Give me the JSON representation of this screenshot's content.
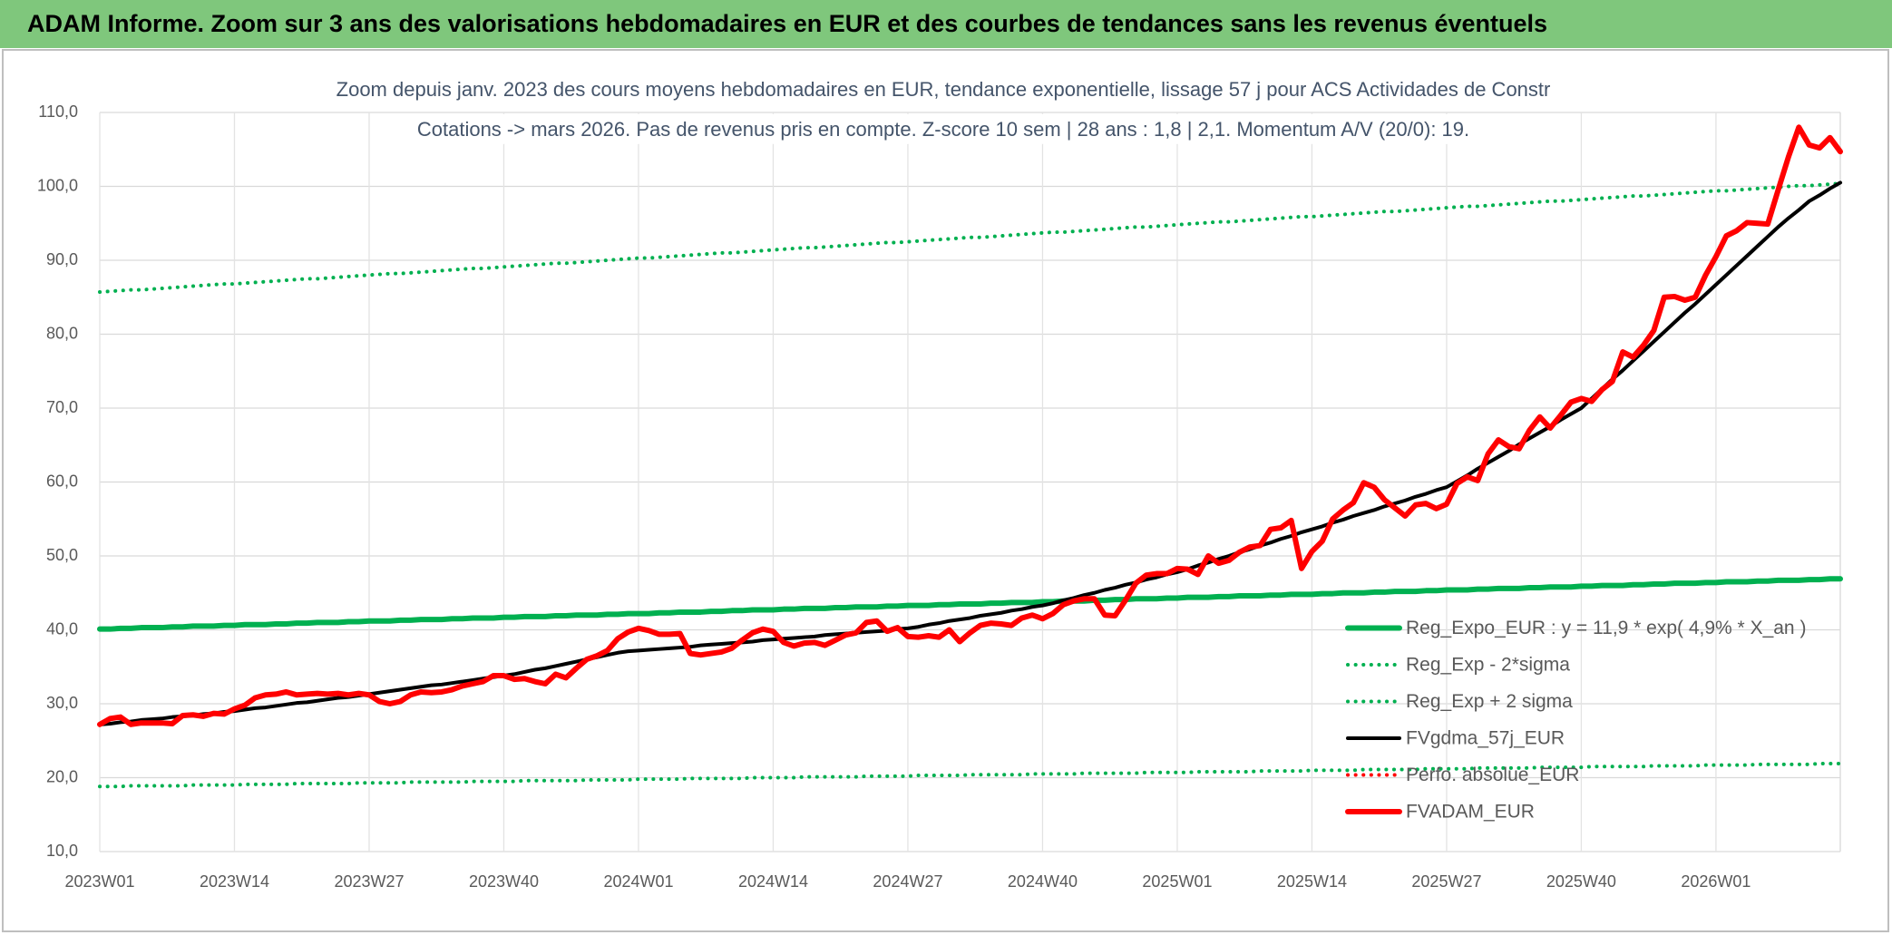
{
  "chart_data": {
    "type": "line",
    "title": "ADAM Informe. Zoom sur 3 ans des valorisations hebdomadaires en EUR et des courbes de tendances sans les revenus éventuels",
    "subtitle": [
      "Zoom depuis janv. 2023 des cours moyens hebdomadaires en EUR, tendance exponentielle, lissage 57 j pour ACS Actividades de Constr",
      "Cotations -> mars 2026. Pas de revenus pris en compte. Z-score 10 sem | 28 ans : 1,8 | 2,1. Momentum A/V (20/0): 19."
    ],
    "categories": [
      "2023W01",
      null,
      null,
      null,
      null,
      null,
      null,
      null,
      null,
      null,
      null,
      null,
      null,
      "2023W14",
      null,
      null,
      null,
      null,
      null,
      null,
      null,
      null,
      null,
      null,
      null,
      null,
      "2023W27",
      null,
      null,
      null,
      null,
      null,
      null,
      null,
      null,
      null,
      null,
      null,
      null,
      "2023W40",
      null,
      null,
      null,
      null,
      null,
      null,
      null,
      null,
      null,
      null,
      null,
      null,
      "2024W01",
      null,
      null,
      null,
      null,
      null,
      null,
      null,
      null,
      null,
      null,
      null,
      null,
      "2024W14",
      null,
      null,
      null,
      null,
      null,
      null,
      null,
      null,
      null,
      null,
      null,
      null,
      "2024W27",
      null,
      null,
      null,
      null,
      null,
      null,
      null,
      null,
      null,
      null,
      null,
      null,
      "2024W40",
      null,
      null,
      null,
      null,
      null,
      null,
      null,
      null,
      null,
      null,
      null,
      null,
      "2025W01",
      null,
      null,
      null,
      null,
      null,
      null,
      null,
      null,
      null,
      null,
      null,
      null,
      "2025W14",
      null,
      null,
      null,
      null,
      null,
      null,
      null,
      null,
      null,
      null,
      null,
      null,
      "2025W27",
      null,
      null,
      null,
      null,
      null,
      null,
      null,
      null,
      null,
      null,
      null,
      null,
      "2025W40",
      null,
      null,
      null,
      null,
      null,
      null,
      null,
      null,
      null,
      null,
      null,
      null,
      "2026W01",
      null,
      null,
      null,
      null,
      null,
      null,
      null,
      null,
      null,
      null,
      null,
      null
    ],
    "ylim": [
      10,
      110
    ],
    "yticks": [
      {
        "value": 10,
        "label": "10,0"
      },
      {
        "value": 20,
        "label": "20,0"
      },
      {
        "value": 30,
        "label": "30,0"
      },
      {
        "value": 40,
        "label": "40,0"
      },
      {
        "value": 50,
        "label": "50,0"
      },
      {
        "value": 60,
        "label": "60,0"
      },
      {
        "value": 70,
        "label": "70,0"
      },
      {
        "value": 80,
        "label": "80,0"
      },
      {
        "value": 90,
        "label": "90,0"
      },
      {
        "value": 100,
        "label": "100,0"
      },
      {
        "value": 110,
        "label": "110,0"
      }
    ],
    "grid": true,
    "legend": "right",
    "series": [
      {
        "name": "Reg_Expo_EUR : y = 11,9 * exp( 4,9% * X_an )",
        "color": "#00b050",
        "line_style": "thick",
        "values": [
          40.1,
          40.1,
          40.2,
          40.2,
          40.3,
          40.3,
          40.3,
          40.4,
          40.4,
          40.5,
          40.5,
          40.5,
          40.6,
          40.6,
          40.7,
          40.7,
          40.7,
          40.8,
          40.8,
          40.9,
          40.9,
          41.0,
          41.0,
          41.0,
          41.1,
          41.1,
          41.2,
          41.2,
          41.2,
          41.3,
          41.3,
          41.4,
          41.4,
          41.4,
          41.5,
          41.5,
          41.6,
          41.6,
          41.6,
          41.7,
          41.7,
          41.8,
          41.8,
          41.8,
          41.9,
          41.9,
          42.0,
          42.0,
          42.0,
          42.1,
          42.1,
          42.2,
          42.2,
          42.2,
          42.3,
          42.3,
          42.4,
          42.4,
          42.4,
          42.5,
          42.5,
          42.6,
          42.6,
          42.7,
          42.7,
          42.7,
          42.8,
          42.8,
          42.9,
          42.9,
          42.9,
          43.0,
          43.0,
          43.1,
          43.1,
          43.1,
          43.2,
          43.2,
          43.3,
          43.3,
          43.3,
          43.4,
          43.4,
          43.5,
          43.5,
          43.5,
          43.6,
          43.6,
          43.7,
          43.7,
          43.7,
          43.8,
          43.8,
          43.9,
          43.9,
          43.9,
          44.0,
          44.0,
          44.1,
          44.1,
          44.2,
          44.2,
          44.2,
          44.3,
          44.3,
          44.4,
          44.4,
          44.4,
          44.5,
          44.5,
          44.6,
          44.6,
          44.6,
          44.7,
          44.7,
          44.8,
          44.8,
          44.8,
          44.9,
          44.9,
          45.0,
          45.0,
          45.0,
          45.1,
          45.1,
          45.2,
          45.2,
          45.2,
          45.3,
          45.3,
          45.4,
          45.4,
          45.4,
          45.5,
          45.5,
          45.6,
          45.6,
          45.6,
          45.7,
          45.7,
          45.8,
          45.8,
          45.8,
          45.9,
          45.9,
          46.0,
          46.0,
          46.0,
          46.1,
          46.1,
          46.2,
          46.2,
          46.3,
          46.3,
          46.3,
          46.4,
          46.4,
          46.5,
          46.5,
          46.5,
          46.6,
          46.6,
          46.7,
          46.7,
          46.7,
          46.8,
          46.8,
          46.9,
          46.9
        ]
      },
      {
        "name": "Reg_Exp - 2*sigma",
        "color": "#00b050",
        "line_style": "dotted",
        "values": [
          18.8,
          18.8,
          18.8,
          18.9,
          18.9,
          18.9,
          18.9,
          18.9,
          18.9,
          19.0,
          19.0,
          19.0,
          19.0,
          19.0,
          19.1,
          19.1,
          19.1,
          19.1,
          19.1,
          19.2,
          19.2,
          19.2,
          19.2,
          19.2,
          19.2,
          19.3,
          19.3,
          19.3,
          19.3,
          19.3,
          19.4,
          19.4,
          19.4,
          19.4,
          19.4,
          19.4,
          19.5,
          19.5,
          19.5,
          19.5,
          19.5,
          19.6,
          19.6,
          19.6,
          19.6,
          19.6,
          19.6,
          19.7,
          19.7,
          19.7,
          19.7,
          19.7,
          19.8,
          19.8,
          19.8,
          19.8,
          19.8,
          19.9,
          19.9,
          19.9,
          19.9,
          19.9,
          19.9,
          20.0,
          20.0,
          20.0,
          20.0,
          20.0,
          20.1,
          20.1,
          20.1,
          20.1,
          20.1,
          20.1,
          20.2,
          20.2,
          20.2,
          20.2,
          20.2,
          20.3,
          20.3,
          20.3,
          20.3,
          20.3,
          20.4,
          20.4,
          20.4,
          20.4,
          20.4,
          20.4,
          20.5,
          20.5,
          20.5,
          20.5,
          20.5,
          20.6,
          20.6,
          20.6,
          20.6,
          20.6,
          20.6,
          20.7,
          20.7,
          20.7,
          20.7,
          20.7,
          20.8,
          20.8,
          20.8,
          20.8,
          20.8,
          20.8,
          20.9,
          20.9,
          20.9,
          20.9,
          20.9,
          21.0,
          21.0,
          21.0,
          21.0,
          21.0,
          21.1,
          21.1,
          21.1,
          21.1,
          21.1,
          21.1,
          21.2,
          21.2,
          21.2,
          21.2,
          21.2,
          21.3,
          21.3,
          21.3,
          21.3,
          21.3,
          21.3,
          21.4,
          21.4,
          21.4,
          21.4,
          21.4,
          21.5,
          21.5,
          21.5,
          21.5,
          21.5,
          21.5,
          21.6,
          21.6,
          21.6,
          21.6,
          21.6,
          21.7,
          21.7,
          21.7,
          21.7,
          21.7,
          21.8,
          21.8,
          21.8,
          21.8,
          21.8,
          21.8,
          21.9,
          21.9,
          21.9
        ]
      },
      {
        "name": "Reg_Exp + 2 sigma",
        "color": "#00b050",
        "line_style": "dotted",
        "values": [
          85.7,
          85.8,
          85.9,
          86.0,
          86.0,
          86.1,
          86.2,
          86.3,
          86.4,
          86.5,
          86.6,
          86.7,
          86.8,
          86.8,
          86.9,
          87.0,
          87.1,
          87.2,
          87.3,
          87.4,
          87.5,
          87.5,
          87.6,
          87.7,
          87.8,
          87.9,
          88.0,
          88.1,
          88.2,
          88.2,
          88.3,
          88.4,
          88.5,
          88.6,
          88.7,
          88.8,
          88.9,
          88.9,
          89.0,
          89.1,
          89.2,
          89.3,
          89.4,
          89.5,
          89.6,
          89.6,
          89.7,
          89.8,
          89.9,
          90.0,
          90.1,
          90.2,
          90.3,
          90.3,
          90.4,
          90.5,
          90.6,
          90.7,
          90.8,
          90.9,
          91.0,
          91.0,
          91.1,
          91.2,
          91.3,
          91.4,
          91.5,
          91.6,
          91.7,
          91.7,
          91.8,
          91.9,
          92.0,
          92.1,
          92.2,
          92.3,
          92.4,
          92.4,
          92.5,
          92.6,
          92.7,
          92.8,
          92.9,
          93.0,
          93.1,
          93.1,
          93.2,
          93.3,
          93.4,
          93.5,
          93.6,
          93.7,
          93.8,
          93.8,
          93.9,
          94.0,
          94.1,
          94.2,
          94.3,
          94.4,
          94.5,
          94.5,
          94.6,
          94.7,
          94.8,
          94.9,
          95.0,
          95.1,
          95.2,
          95.2,
          95.3,
          95.4,
          95.5,
          95.6,
          95.7,
          95.8,
          95.9,
          95.9,
          96.0,
          96.1,
          96.2,
          96.3,
          96.4,
          96.5,
          96.6,
          96.6,
          96.7,
          96.8,
          96.9,
          97.0,
          97.1,
          97.2,
          97.3,
          97.3,
          97.4,
          97.5,
          97.6,
          97.7,
          97.8,
          97.9,
          98.0,
          98.0,
          98.1,
          98.2,
          98.3,
          98.4,
          98.5,
          98.6,
          98.7,
          98.7,
          98.8,
          98.9,
          99.0,
          99.1,
          99.2,
          99.3,
          99.4,
          99.4,
          99.5,
          99.6,
          99.7,
          99.8,
          99.9,
          100.0,
          100.1,
          100.1,
          100.2,
          100.3,
          100.4
        ]
      },
      {
        "name": "FVgdma_57j_EUR",
        "color": "#000000",
        "line_style": "normal",
        "values": [
          27.2,
          27.3,
          27.5,
          27.6,
          27.8,
          27.9,
          28.0,
          28.2,
          28.3,
          28.4,
          28.6,
          28.7,
          28.9,
          29.0,
          29.2,
          29.4,
          29.5,
          29.7,
          29.9,
          30.1,
          30.2,
          30.4,
          30.6,
          30.8,
          30.9,
          31.1,
          31.3,
          31.5,
          31.7,
          31.9,
          32.1,
          32.3,
          32.5,
          32.6,
          32.8,
          33.0,
          33.2,
          33.4,
          33.6,
          33.8,
          34.0,
          34.3,
          34.6,
          34.8,
          35.1,
          35.4,
          35.7,
          36.0,
          36.3,
          36.6,
          36.9,
          37.1,
          37.2,
          37.3,
          37.4,
          37.5,
          37.6,
          37.7,
          37.9,
          38.0,
          38.1,
          38.2,
          38.3,
          38.4,
          38.6,
          38.7,
          38.8,
          38.9,
          39.0,
          39.1,
          39.3,
          39.4,
          39.5,
          39.6,
          39.7,
          39.8,
          39.9,
          40.1,
          40.2,
          40.4,
          40.7,
          40.9,
          41.2,
          41.4,
          41.6,
          41.9,
          42.1,
          42.3,
          42.6,
          42.8,
          43.1,
          43.3,
          43.6,
          44.0,
          44.3,
          44.7,
          45.0,
          45.4,
          45.7,
          46.1,
          46.4,
          46.8,
          47.1,
          47.5,
          47.8,
          48.2,
          48.7,
          49.1,
          49.6,
          50.0,
          50.5,
          50.9,
          51.4,
          51.8,
          52.3,
          52.7,
          53.2,
          53.6,
          54.0,
          54.5,
          54.9,
          55.4,
          55.8,
          56.2,
          56.7,
          57.1,
          57.5,
          58.0,
          58.4,
          58.9,
          59.3,
          60.1,
          60.9,
          61.8,
          62.6,
          63.4,
          64.2,
          65.1,
          65.9,
          66.7,
          67.5,
          68.4,
          69.2,
          70.0,
          71.3,
          72.6,
          73.9,
          75.1,
          76.4,
          77.7,
          79.0,
          80.3,
          81.6,
          82.9,
          84.1,
          85.4,
          86.7,
          88.0,
          89.3,
          90.6,
          91.9,
          93.2,
          94.5,
          95.7,
          96.8,
          98.0,
          98.8,
          99.7,
          100.5
        ]
      },
      {
        "name": "Perfo. absolue_EUR",
        "color": "#ff0000",
        "line_style": "dotted"
      },
      {
        "name": "FVADAM_EUR",
        "color": "#ff0000",
        "line_style": "thick",
        "values": [
          27.2,
          28.0,
          28.2,
          27.2,
          27.4,
          27.4,
          27.4,
          27.3,
          28.4,
          28.5,
          28.3,
          28.7,
          28.6,
          29.3,
          29.8,
          30.8,
          31.2,
          31.3,
          31.6,
          31.2,
          31.3,
          31.4,
          31.3,
          31.4,
          31.2,
          31.4,
          31.2,
          30.3,
          30.0,
          30.3,
          31.2,
          31.6,
          31.5,
          31.6,
          31.9,
          32.4,
          32.7,
          33.0,
          33.8,
          33.8,
          33.3,
          33.4,
          33.0,
          32.7,
          34.0,
          33.5,
          34.8,
          36.0,
          36.5,
          37.2,
          38.8,
          39.7,
          40.2,
          39.9,
          39.4,
          39.4,
          39.5,
          36.8,
          36.6,
          36.8,
          37.0,
          37.5,
          38.6,
          39.6,
          40.1,
          39.8,
          38.3,
          37.8,
          38.2,
          38.3,
          37.9,
          38.6,
          39.3,
          39.6,
          41.0,
          41.2,
          39.8,
          40.3,
          39.1,
          39.0,
          39.2,
          39.0,
          40.0,
          38.4,
          39.6,
          40.6,
          40.9,
          40.8,
          40.6,
          41.6,
          42.0,
          41.5,
          42.2,
          43.4,
          43.9,
          44.2,
          44.2,
          42.0,
          41.9,
          44.0,
          46.3,
          47.4,
          47.6,
          47.6,
          48.3,
          48.2,
          47.5,
          50.0,
          49.0,
          49.4,
          50.5,
          51.2,
          51.4,
          53.6,
          53.8,
          54.8,
          48.3,
          50.6,
          52.0,
          55.0,
          56.2,
          57.2,
          59.9,
          59.3,
          57.6,
          56.5,
          55.4,
          56.9,
          57.1,
          56.4,
          57.0,
          59.8,
          60.7,
          60.2,
          63.8,
          65.7,
          64.8,
          64.5,
          67.0,
          68.8,
          67.3,
          69.0,
          70.8,
          71.3,
          70.9,
          72.5,
          73.6,
          77.6,
          76.9,
          78.5,
          80.5,
          85.0,
          85.1,
          84.6,
          85.0,
          88.0,
          90.5,
          93.3,
          94.0,
          95.1,
          95.0,
          94.9,
          99.5,
          104.0,
          108.0,
          105.6,
          105.2,
          106.6,
          104.7
        ]
      }
    ]
  }
}
